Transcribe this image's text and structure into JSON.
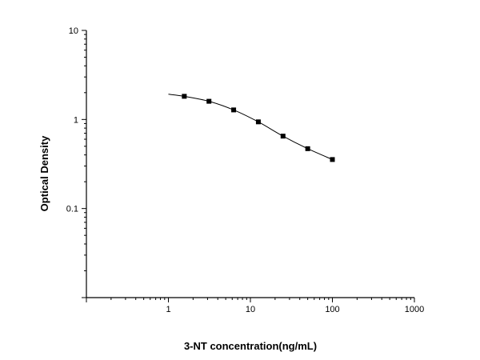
{
  "chart_data": {
    "type": "scatter",
    "title": "",
    "xlabel": "3-NT concentration(ng/mL)",
    "ylabel": "Optical Density",
    "xscale": "log",
    "yscale": "log",
    "xlim": [
      0.1,
      1000
    ],
    "ylim": [
      0.01,
      10
    ],
    "x_tick_labels": [
      "1",
      "10",
      "100",
      "1000"
    ],
    "y_tick_labels": [
      "0.1",
      "1",
      "10"
    ],
    "grid": false,
    "legend": "none",
    "series": [
      {
        "marker": "square",
        "x": [
          1.5625,
          3.125,
          6.25,
          12.5,
          25,
          50,
          100
        ],
        "y": [
          1.82,
          1.6,
          1.28,
          0.94,
          0.65,
          0.47,
          0.355
        ]
      }
    ],
    "fit_curve": {
      "type": "line",
      "x": [
        1,
        1.5625,
        3.125,
        6.25,
        12.5,
        25,
        50,
        100
      ],
      "y": [
        1.92,
        1.82,
        1.6,
        1.28,
        0.94,
        0.65,
        0.47,
        0.355
      ]
    }
  }
}
